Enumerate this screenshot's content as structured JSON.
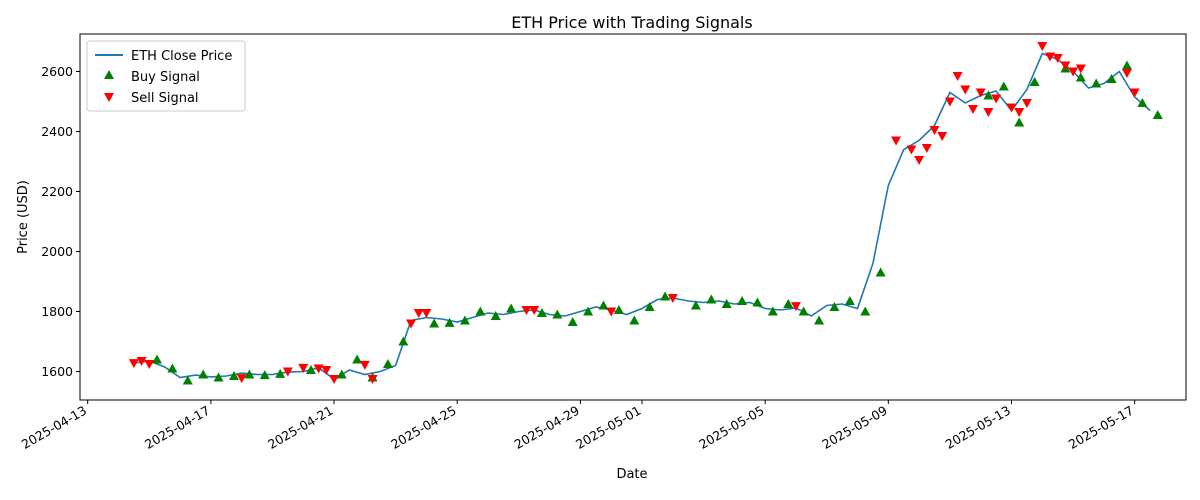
{
  "chart_data": {
    "type": "line",
    "title": "ETH Price with Trading Signals",
    "xlabel": "Date",
    "ylabel": "Price (USD)",
    "grid": false,
    "legend_position": "top-left",
    "xlim": [
      "2025-04-12T18:00",
      "2025-05-18T16:00"
    ],
    "ylim": [
      1505,
      2725
    ],
    "x_ticks": [
      "2025-04-13",
      "2025-04-17",
      "2025-04-21",
      "2025-04-25",
      "2025-04-29",
      "2025-05-01",
      "2025-05-05",
      "2025-05-09",
      "2025-05-13",
      "2025-05-17"
    ],
    "y_ticks": [
      1600,
      1800,
      2000,
      2200,
      2400,
      2600
    ],
    "colors": {
      "price": "#1f77b4",
      "buy": "#008000",
      "sell": "#ff0000"
    },
    "series": [
      {
        "name": "ETH Close Price",
        "kind": "line",
        "points": [
          [
            "2025-04-14T12:00",
            1628
          ],
          [
            "2025-04-15T00:00",
            1635
          ],
          [
            "2025-04-15T12:00",
            1615
          ],
          [
            "2025-04-16T00:00",
            1580
          ],
          [
            "2025-04-16T12:00",
            1588
          ],
          [
            "2025-04-17T00:00",
            1582
          ],
          [
            "2025-04-17T12:00",
            1585
          ],
          [
            "2025-04-18T00:00",
            1595
          ],
          [
            "2025-04-18T12:00",
            1590
          ],
          [
            "2025-04-19T00:00",
            1590
          ],
          [
            "2025-04-19T12:00",
            1598
          ],
          [
            "2025-04-20T00:00",
            1600
          ],
          [
            "2025-04-20T12:00",
            1612
          ],
          [
            "2025-04-21T00:00",
            1575
          ],
          [
            "2025-04-21T12:00",
            1605
          ],
          [
            "2025-04-22T00:00",
            1590
          ],
          [
            "2025-04-22T12:00",
            1600
          ],
          [
            "2025-04-23T00:00",
            1620
          ],
          [
            "2025-04-23T12:00",
            1770
          ],
          [
            "2025-04-24T00:00",
            1780
          ],
          [
            "2025-04-24T12:00",
            1775
          ],
          [
            "2025-04-25T00:00",
            1765
          ],
          [
            "2025-04-25T12:00",
            1780
          ],
          [
            "2025-04-26T00:00",
            1795
          ],
          [
            "2025-04-26T12:00",
            1790
          ],
          [
            "2025-04-27T00:00",
            1800
          ],
          [
            "2025-04-27T12:00",
            1805
          ],
          [
            "2025-04-28T00:00",
            1790
          ],
          [
            "2025-04-28T12:00",
            1785
          ],
          [
            "2025-04-29T00:00",
            1800
          ],
          [
            "2025-04-29T12:00",
            1815
          ],
          [
            "2025-04-30T00:00",
            1805
          ],
          [
            "2025-04-30T12:00",
            1790
          ],
          [
            "2025-05-01T00:00",
            1810
          ],
          [
            "2025-05-01T12:00",
            1840
          ],
          [
            "2025-05-02T00:00",
            1845
          ],
          [
            "2025-05-02T12:00",
            1835
          ],
          [
            "2025-05-03T00:00",
            1830
          ],
          [
            "2025-05-03T12:00",
            1835
          ],
          [
            "2025-05-04T00:00",
            1825
          ],
          [
            "2025-05-04T12:00",
            1830
          ],
          [
            "2025-05-05T00:00",
            1810
          ],
          [
            "2025-05-05T12:00",
            1805
          ],
          [
            "2025-05-06T00:00",
            1812
          ],
          [
            "2025-05-06T12:00",
            1785
          ],
          [
            "2025-05-07T00:00",
            1820
          ],
          [
            "2025-05-07T12:00",
            1825
          ],
          [
            "2025-05-08T00:00",
            1810
          ],
          [
            "2025-05-08T12:00",
            1960
          ],
          [
            "2025-05-09T00:00",
            2220
          ],
          [
            "2025-05-09T12:00",
            2340
          ],
          [
            "2025-05-10T00:00",
            2370
          ],
          [
            "2025-05-10T12:00",
            2420
          ],
          [
            "2025-05-11T00:00",
            2530
          ],
          [
            "2025-05-11T12:00",
            2495
          ],
          [
            "2025-05-12T00:00",
            2520
          ],
          [
            "2025-05-12T12:00",
            2535
          ],
          [
            "2025-05-13T00:00",
            2470
          ],
          [
            "2025-05-13T12:00",
            2540
          ],
          [
            "2025-05-14T00:00",
            2660
          ],
          [
            "2025-05-14T12:00",
            2640
          ],
          [
            "2025-05-15T00:00",
            2600
          ],
          [
            "2025-05-15T12:00",
            2545
          ],
          [
            "2025-05-16T00:00",
            2560
          ],
          [
            "2025-05-16T12:00",
            2600
          ],
          [
            "2025-05-17T00:00",
            2515
          ],
          [
            "2025-05-17T12:00",
            2470
          ]
        ]
      },
      {
        "name": "Buy Signal",
        "kind": "marker-up",
        "points": [
          [
            "2025-04-15T06:00",
            1640
          ],
          [
            "2025-04-15T18:00",
            1610
          ],
          [
            "2025-04-16T06:00",
            1570
          ],
          [
            "2025-04-16T18:00",
            1590
          ],
          [
            "2025-04-17T06:00",
            1580
          ],
          [
            "2025-04-17T18:00",
            1585
          ],
          [
            "2025-04-18T06:00",
            1590
          ],
          [
            "2025-04-18T18:00",
            1588
          ],
          [
            "2025-04-19T06:00",
            1592
          ],
          [
            "2025-04-20T06:00",
            1605
          ],
          [
            "2025-04-21T06:00",
            1590
          ],
          [
            "2025-04-21T18:00",
            1640
          ],
          [
            "2025-04-22T06:00",
            1580
          ],
          [
            "2025-04-22T18:00",
            1625
          ],
          [
            "2025-04-23T06:00",
            1700
          ],
          [
            "2025-04-24T06:00",
            1760
          ],
          [
            "2025-04-24T18:00",
            1762
          ],
          [
            "2025-04-25T06:00",
            1770
          ],
          [
            "2025-04-25T18:00",
            1800
          ],
          [
            "2025-04-26T06:00",
            1785
          ],
          [
            "2025-04-26T18:00",
            1810
          ],
          [
            "2025-04-27T18:00",
            1795
          ],
          [
            "2025-04-28T06:00",
            1790
          ],
          [
            "2025-04-28T18:00",
            1765
          ],
          [
            "2025-04-29T06:00",
            1800
          ],
          [
            "2025-04-29T18:00",
            1820
          ],
          [
            "2025-04-30T06:00",
            1805
          ],
          [
            "2025-04-30T18:00",
            1770
          ],
          [
            "2025-05-01T06:00",
            1815
          ],
          [
            "2025-05-01T18:00",
            1850
          ],
          [
            "2025-05-02T18:00",
            1820
          ],
          [
            "2025-05-03T06:00",
            1840
          ],
          [
            "2025-05-03T18:00",
            1825
          ],
          [
            "2025-05-04T06:00",
            1835
          ],
          [
            "2025-05-04T18:00",
            1830
          ],
          [
            "2025-05-05T06:00",
            1800
          ],
          [
            "2025-05-05T18:00",
            1825
          ],
          [
            "2025-05-06T06:00",
            1800
          ],
          [
            "2025-05-06T18:00",
            1770
          ],
          [
            "2025-05-07T06:00",
            1815
          ],
          [
            "2025-05-07T18:00",
            1835
          ],
          [
            "2025-05-08T06:00",
            1800
          ],
          [
            "2025-05-08T18:00",
            1930
          ],
          [
            "2025-05-12T06:00",
            2520
          ],
          [
            "2025-05-12T18:00",
            2550
          ],
          [
            "2025-05-13T06:00",
            2430
          ],
          [
            "2025-05-13T18:00",
            2565
          ],
          [
            "2025-05-14T18:00",
            2610
          ],
          [
            "2025-05-15T06:00",
            2580
          ],
          [
            "2025-05-15T18:00",
            2560
          ],
          [
            "2025-05-16T06:00",
            2575
          ],
          [
            "2025-05-16T18:00",
            2620
          ],
          [
            "2025-05-17T06:00",
            2495
          ],
          [
            "2025-05-17T18:00",
            2455
          ]
        ]
      },
      {
        "name": "Sell Signal",
        "kind": "marker-down",
        "points": [
          [
            "2025-04-14T12:00",
            1628
          ],
          [
            "2025-04-14T18:00",
            1635
          ],
          [
            "2025-04-15T00:00",
            1625
          ],
          [
            "2025-04-18T00:00",
            1578
          ],
          [
            "2025-04-19T12:00",
            1600
          ],
          [
            "2025-04-20T00:00",
            1612
          ],
          [
            "2025-04-20T12:00",
            1610
          ],
          [
            "2025-04-20T18:00",
            1605
          ],
          [
            "2025-04-21T00:00",
            1575
          ],
          [
            "2025-04-22T00:00",
            1622
          ],
          [
            "2025-04-22T06:00",
            1575
          ],
          [
            "2025-04-23T12:00",
            1760
          ],
          [
            "2025-04-23T18:00",
            1795
          ],
          [
            "2025-04-24T00:00",
            1795
          ],
          [
            "2025-04-27T06:00",
            1805
          ],
          [
            "2025-04-27T12:00",
            1805
          ],
          [
            "2025-04-30T00:00",
            1800
          ],
          [
            "2025-05-02T00:00",
            1845
          ],
          [
            "2025-05-06T00:00",
            1818
          ],
          [
            "2025-05-09T06:00",
            2370
          ],
          [
            "2025-05-09T18:00",
            2340
          ],
          [
            "2025-05-10T00:00",
            2305
          ],
          [
            "2025-05-10T06:00",
            2345
          ],
          [
            "2025-05-10T12:00",
            2405
          ],
          [
            "2025-05-10T18:00",
            2385
          ],
          [
            "2025-05-11T00:00",
            2500
          ],
          [
            "2025-05-11T06:00",
            2585
          ],
          [
            "2025-05-11T12:00",
            2540
          ],
          [
            "2025-05-11T18:00",
            2475
          ],
          [
            "2025-05-12T00:00",
            2530
          ],
          [
            "2025-05-12T06:00",
            2465
          ],
          [
            "2025-05-12T12:00",
            2510
          ],
          [
            "2025-05-13T00:00",
            2480
          ],
          [
            "2025-05-13T06:00",
            2465
          ],
          [
            "2025-05-13T12:00",
            2495
          ],
          [
            "2025-05-14T00:00",
            2685
          ],
          [
            "2025-05-14T06:00",
            2650
          ],
          [
            "2025-05-14T12:00",
            2645
          ],
          [
            "2025-05-14T18:00",
            2620
          ],
          [
            "2025-05-15T00:00",
            2600
          ],
          [
            "2025-05-15T06:00",
            2610
          ],
          [
            "2025-05-16T18:00",
            2595
          ],
          [
            "2025-05-17T00:00",
            2530
          ]
        ]
      }
    ]
  }
}
